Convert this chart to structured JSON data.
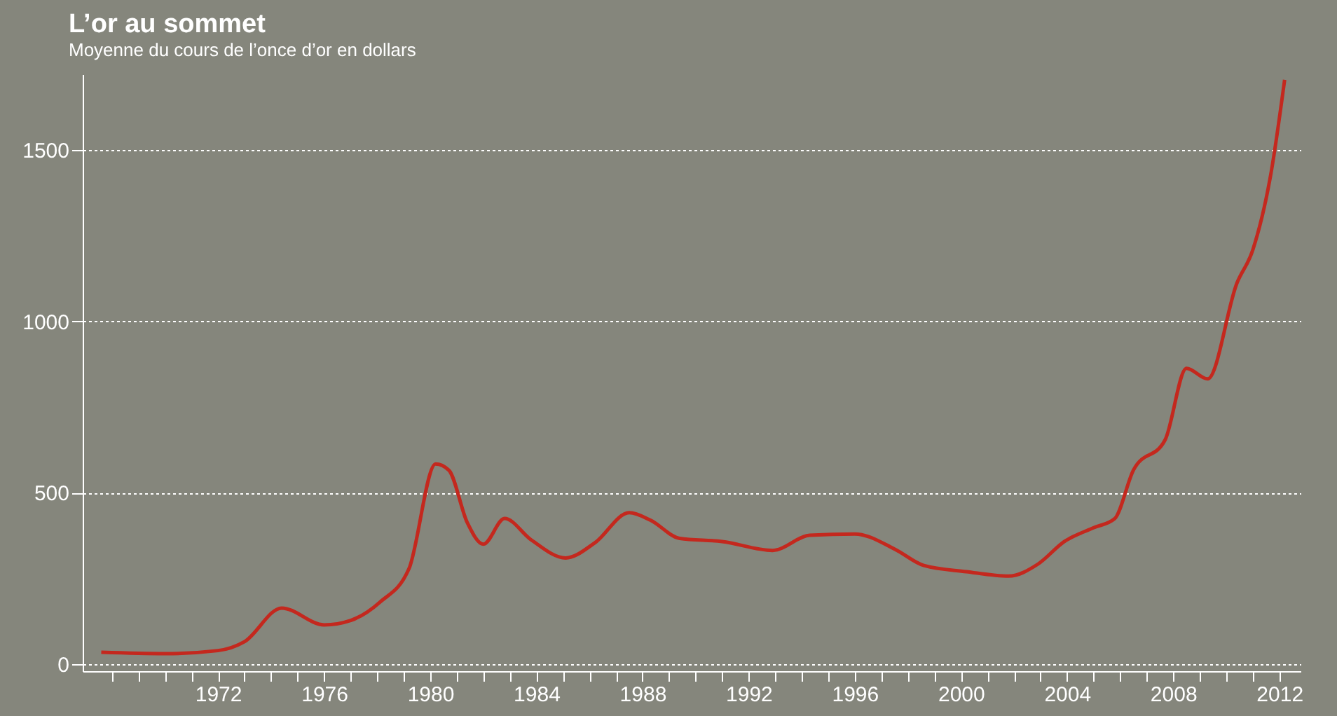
{
  "chart_data": {
    "type": "line",
    "title": "L’or au sommet",
    "subtitle": "Moyenne du cours de l’once d’or en dollars",
    "x": [
      1967.6,
      1970,
      1972,
      1973,
      1974.4,
      1976,
      1977,
      1978.1,
      1979.2,
      1980.2,
      1980.7,
      1981.4,
      1982,
      1982.8,
      1983.8,
      1985.1,
      1986.2,
      1987.5,
      1988.3,
      1989.4,
      1991,
      1992.9,
      1994.3,
      1996,
      1997.5,
      1998.6,
      2000.2,
      2001.8,
      2002.9,
      2003.9,
      2005,
      2005.8,
      2006.5,
      2007.7,
      2008.5,
      2009.3,
      2010.4,
      2011,
      2011.7,
      2012.2
    ],
    "series": [
      {
        "color": "#c4281e",
        "values": [
          35,
          31,
          40,
          66,
          164,
          115,
          128,
          181,
          279,
          584,
          566,
          412,
          350,
          425,
          363,
          310,
          354,
          442,
          420,
          367,
          358,
          332,
          376,
          380,
          336,
          288,
          270,
          257,
          292,
          358,
          398,
          425,
          566,
          655,
          863,
          832,
          1111,
          1208,
          1438,
          1704
        ]
      }
    ],
    "xlim": [
      1966.9,
      2012.8
    ],
    "ylim": [
      -20,
      1720
    ],
    "xticks": [
      {
        "value": 1968,
        "label": null
      },
      {
        "value": 1969,
        "label": null
      },
      {
        "value": 1970,
        "label": null
      },
      {
        "value": 1971,
        "label": null
      },
      1972,
      {
        "value": 1973,
        "label": null
      },
      {
        "value": 1974,
        "label": null
      },
      {
        "value": 1975,
        "label": null
      },
      1976,
      {
        "value": 1977,
        "label": null
      },
      {
        "value": 1978,
        "label": null
      },
      {
        "value": 1979,
        "label": null
      },
      1980,
      {
        "value": 1981,
        "label": null
      },
      {
        "value": 1982,
        "label": null
      },
      {
        "value": 1983,
        "label": null
      },
      1984,
      {
        "value": 1985,
        "label": null
      },
      {
        "value": 1986,
        "label": null
      },
      {
        "value": 1987,
        "label": null
      },
      1988,
      {
        "value": 1989,
        "label": null
      },
      {
        "value": 1990,
        "label": null
      },
      {
        "value": 1991,
        "label": null
      },
      1992,
      {
        "value": 1993,
        "label": null
      },
      {
        "value": 1994,
        "label": null
      },
      {
        "value": 1995,
        "label": null
      },
      1996,
      {
        "value": 1997,
        "label": null
      },
      {
        "value": 1998,
        "label": null
      },
      {
        "value": 1999,
        "label": null
      },
      2000,
      {
        "value": 2001,
        "label": null
      },
      {
        "value": 2002,
        "label": null
      },
      {
        "value": 2003,
        "label": null
      },
      2004,
      {
        "value": 2005,
        "label": null
      },
      {
        "value": 2006,
        "label": null
      },
      {
        "value": 2007,
        "label": null
      },
      2008,
      {
        "value": 2009,
        "label": null
      },
      {
        "value": 2010,
        "label": null
      },
      {
        "value": 2011,
        "label": null
      },
      2012
    ],
    "yticks": [
      0,
      500,
      1000,
      1500
    ],
    "grid": "y",
    "line_style": "solid",
    "marker": "none"
  }
}
